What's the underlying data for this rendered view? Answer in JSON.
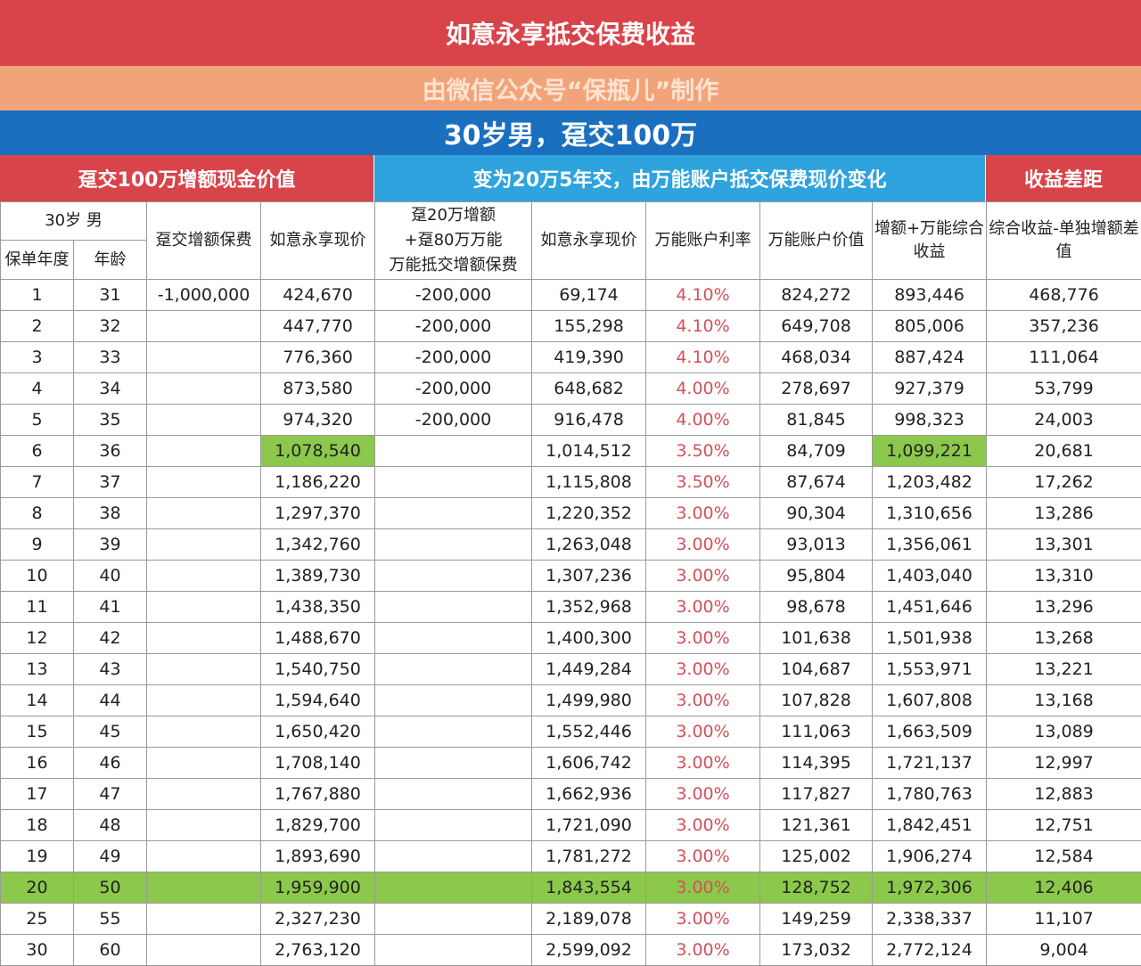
{
  "title": "如意永享抵交保费收益",
  "subtitle": "由微信公众号“保瓶儿”制作",
  "case": "30岁男，趸交100万",
  "groups": {
    "left": "趸交100万增额现金价值",
    "middle": "变为20万5年交，由万能账户抵交保费现价变化",
    "right": "收益差距"
  },
  "headers": {
    "person": "30岁 男",
    "policy_year": "保单年度",
    "age": "年龄",
    "single_premium": "趸交增额保费",
    "ruyi_cv": "如意永享现价",
    "mixed_premium_l1": "趸20万增额",
    "mixed_premium_l2": "+趸80万万能",
    "mixed_premium_l3": "万能抵交增额保费",
    "ruyi_cv2": "如意永享现价",
    "ul_rate": "万能账户利率",
    "ul_value": "万能账户价值",
    "combined": "增额+万能综合收益",
    "diff": "综合收益-单独增额差值"
  },
  "colors": {
    "title_bg": "#d9434a",
    "subtitle_bg": "#f1a47a",
    "case_bg": "#1a6fbf",
    "middle_group_bg": "#2ea3de",
    "highlight": "#8cc84b",
    "rate_text": "#d4505a"
  },
  "rows": [
    {
      "year": "1",
      "age": "31",
      "single": "-1,000,000",
      "cv": "424,670",
      "mixed": "-200,000",
      "cv2": "69,174",
      "rate": "4.10%",
      "ul": "824,272",
      "combined": "893,446",
      "diff": "468,776"
    },
    {
      "year": "2",
      "age": "32",
      "single": "",
      "cv": "447,770",
      "mixed": "-200,000",
      "cv2": "155,298",
      "rate": "4.10%",
      "ul": "649,708",
      "combined": "805,006",
      "diff": "357,236"
    },
    {
      "year": "3",
      "age": "33",
      "single": "",
      "cv": "776,360",
      "mixed": "-200,000",
      "cv2": "419,390",
      "rate": "4.10%",
      "ul": "468,034",
      "combined": "887,424",
      "diff": "111,064"
    },
    {
      "year": "4",
      "age": "34",
      "single": "",
      "cv": "873,580",
      "mixed": "-200,000",
      "cv2": "648,682",
      "rate": "4.00%",
      "ul": "278,697",
      "combined": "927,379",
      "diff": "53,799"
    },
    {
      "year": "5",
      "age": "35",
      "single": "",
      "cv": "974,320",
      "mixed": "-200,000",
      "cv2": "916,478",
      "rate": "4.00%",
      "ul": "81,845",
      "combined": "998,323",
      "diff": "24,003"
    },
    {
      "year": "6",
      "age": "36",
      "single": "",
      "cv": "1,078,540",
      "mixed": "",
      "cv2": "1,014,512",
      "rate": "3.50%",
      "ul": "84,709",
      "combined": "1,099,221",
      "diff": "20,681",
      "highlight_cells": [
        "cv",
        "combined"
      ]
    },
    {
      "year": "7",
      "age": "37",
      "single": "",
      "cv": "1,186,220",
      "mixed": "",
      "cv2": "1,115,808",
      "rate": "3.50%",
      "ul": "87,674",
      "combined": "1,203,482",
      "diff": "17,262"
    },
    {
      "year": "8",
      "age": "38",
      "single": "",
      "cv": "1,297,370",
      "mixed": "",
      "cv2": "1,220,352",
      "rate": "3.00%",
      "ul": "90,304",
      "combined": "1,310,656",
      "diff": "13,286"
    },
    {
      "year": "9",
      "age": "39",
      "single": "",
      "cv": "1,342,760",
      "mixed": "",
      "cv2": "1,263,048",
      "rate": "3.00%",
      "ul": "93,013",
      "combined": "1,356,061",
      "diff": "13,301"
    },
    {
      "year": "10",
      "age": "40",
      "single": "",
      "cv": "1,389,730",
      "mixed": "",
      "cv2": "1,307,236",
      "rate": "3.00%",
      "ul": "95,804",
      "combined": "1,403,040",
      "diff": "13,310"
    },
    {
      "year": "11",
      "age": "41",
      "single": "",
      "cv": "1,438,350",
      "mixed": "",
      "cv2": "1,352,968",
      "rate": "3.00%",
      "ul": "98,678",
      "combined": "1,451,646",
      "diff": "13,296"
    },
    {
      "year": "12",
      "age": "42",
      "single": "",
      "cv": "1,488,670",
      "mixed": "",
      "cv2": "1,400,300",
      "rate": "3.00%",
      "ul": "101,638",
      "combined": "1,501,938",
      "diff": "13,268"
    },
    {
      "year": "13",
      "age": "43",
      "single": "",
      "cv": "1,540,750",
      "mixed": "",
      "cv2": "1,449,284",
      "rate": "3.00%",
      "ul": "104,687",
      "combined": "1,553,971",
      "diff": "13,221"
    },
    {
      "year": "14",
      "age": "44",
      "single": "",
      "cv": "1,594,640",
      "mixed": "",
      "cv2": "1,499,980",
      "rate": "3.00%",
      "ul": "107,828",
      "combined": "1,607,808",
      "diff": "13,168"
    },
    {
      "year": "15",
      "age": "45",
      "single": "",
      "cv": "1,650,420",
      "mixed": "",
      "cv2": "1,552,446",
      "rate": "3.00%",
      "ul": "111,063",
      "combined": "1,663,509",
      "diff": "13,089"
    },
    {
      "year": "16",
      "age": "46",
      "single": "",
      "cv": "1,708,140",
      "mixed": "",
      "cv2": "1,606,742",
      "rate": "3.00%",
      "ul": "114,395",
      "combined": "1,721,137",
      "diff": "12,997"
    },
    {
      "year": "17",
      "age": "47",
      "single": "",
      "cv": "1,767,880",
      "mixed": "",
      "cv2": "1,662,936",
      "rate": "3.00%",
      "ul": "117,827",
      "combined": "1,780,763",
      "diff": "12,883"
    },
    {
      "year": "18",
      "age": "48",
      "single": "",
      "cv": "1,829,700",
      "mixed": "",
      "cv2": "1,721,090",
      "rate": "3.00%",
      "ul": "121,361",
      "combined": "1,842,451",
      "diff": "12,751"
    },
    {
      "year": "19",
      "age": "49",
      "single": "",
      "cv": "1,893,690",
      "mixed": "",
      "cv2": "1,781,272",
      "rate": "3.00%",
      "ul": "125,002",
      "combined": "1,906,274",
      "diff": "12,584"
    },
    {
      "year": "20",
      "age": "50",
      "single": "",
      "cv": "1,959,900",
      "mixed": "",
      "cv2": "1,843,554",
      "rate": "3.00%",
      "ul": "128,752",
      "combined": "1,972,306",
      "diff": "12,406",
      "highlight_row": true
    },
    {
      "year": "25",
      "age": "55",
      "single": "",
      "cv": "2,327,230",
      "mixed": "",
      "cv2": "2,189,078",
      "rate": "3.00%",
      "ul": "149,259",
      "combined": "2,338,337",
      "diff": "11,107"
    },
    {
      "year": "30",
      "age": "60",
      "single": "",
      "cv": "2,763,120",
      "mixed": "",
      "cv2": "2,599,092",
      "rate": "3.00%",
      "ul": "173,032",
      "combined": "2,772,124",
      "diff": "9,004"
    }
  ]
}
